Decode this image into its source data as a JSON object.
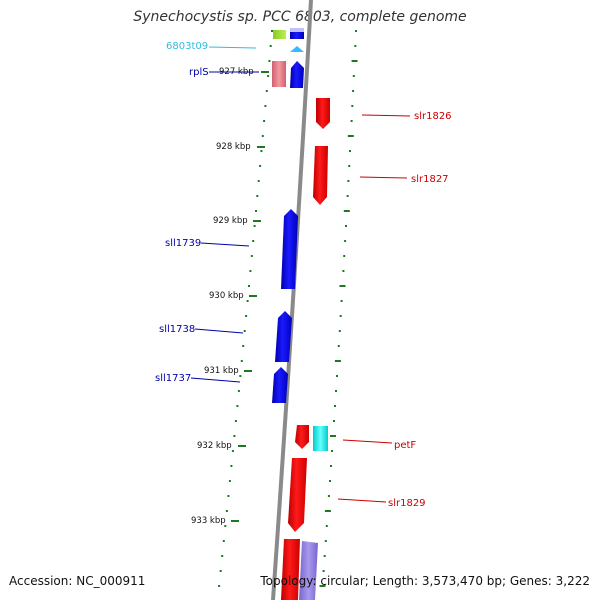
{
  "title": "Synechocystis sp. PCC 6803, complete genome",
  "footer": {
    "accession": "Accession: NC_000911",
    "summary": "Topology: circular; Length: 3,573,470 bp; Genes: 3,222"
  },
  "ticks": [
    {
      "label": "927 kbp"
    },
    {
      "label": "928 kbp"
    },
    {
      "label": "929 kbp"
    },
    {
      "label": "930 kbp"
    },
    {
      "label": "931 kbp"
    },
    {
      "label": "932 kbp"
    },
    {
      "label": "933 kbp"
    }
  ],
  "genes": [
    {
      "name": "6803t09",
      "strand": "reverse",
      "type": "tRNA",
      "color": "#33bbdd"
    },
    {
      "name": "rplS",
      "strand": "reverse",
      "type": "gene",
      "color": "#0000cc"
    },
    {
      "name": "slr1826",
      "strand": "forward",
      "type": "gene",
      "color": "#cc0000"
    },
    {
      "name": "slr1827",
      "strand": "forward",
      "type": "gene",
      "color": "#cc0000"
    },
    {
      "name": "sll1739",
      "strand": "reverse",
      "type": "gene",
      "color": "#0000cc"
    },
    {
      "name": "sll1738",
      "strand": "reverse",
      "type": "gene",
      "color": "#0000cc"
    },
    {
      "name": "sll1737",
      "strand": "reverse",
      "type": "gene",
      "color": "#0000cc"
    },
    {
      "name": "petF",
      "strand": "forward",
      "type": "gene",
      "color": "#cc0000"
    },
    {
      "name": "slr1829",
      "strand": "forward",
      "type": "gene",
      "color": "#cc0000"
    }
  ],
  "colors": {
    "backbone": "#8a8a8a",
    "tick": "#1f7a1f",
    "forward_gene": "#ee0000",
    "reverse_gene": "#0000ee",
    "forward_label": "#cc0000",
    "reverse_label": "#0000aa",
    "trna_label": "#33bbdd"
  }
}
